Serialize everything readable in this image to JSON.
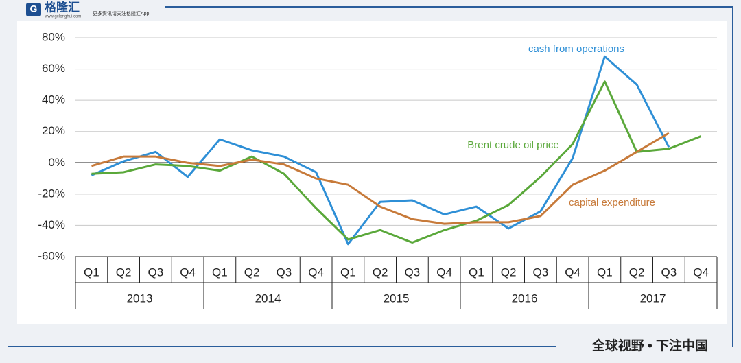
{
  "brand": {
    "name": "格隆汇",
    "url": "www.gelonghui.com",
    "tagline": "更多资讯请关注格隆汇App",
    "footer": "全球视野 • 下注中国"
  },
  "chart_data": {
    "type": "line",
    "categories": [
      "Q1",
      "Q2",
      "Q3",
      "Q4",
      "Q1",
      "Q2",
      "Q3",
      "Q4",
      "Q1",
      "Q2",
      "Q3",
      "Q4",
      "Q1",
      "Q2",
      "Q3",
      "Q4",
      "Q1",
      "Q2",
      "Q3",
      "Q4"
    ],
    "groups": [
      "2013",
      "2014",
      "2015",
      "2016",
      "2017"
    ],
    "series": [
      {
        "name": "cash from operations",
        "color": "#2e8fd6",
        "values": [
          -8,
          1,
          7,
          -9,
          15,
          8,
          4,
          -6,
          -52,
          -25,
          -24,
          -33,
          -28,
          -42,
          -31,
          3,
          68,
          50,
          10,
          null
        ]
      },
      {
        "name": "Brent crude oil price",
        "color": "#5aa83a",
        "values": [
          -7,
          -6,
          -1,
          -2,
          -5,
          4,
          -7,
          -29,
          -49,
          -43,
          -51,
          -43,
          -37,
          -27,
          -9,
          12,
          52,
          7,
          9,
          17
        ]
      },
      {
        "name": "capital expenditure",
        "color": "#c77a3a",
        "values": [
          -2,
          4,
          4,
          0,
          -2,
          2,
          -1,
          -10,
          -14,
          -28,
          -36,
          -39,
          -38,
          -38,
          -34,
          -14,
          -5,
          7,
          19,
          null
        ]
      }
    ],
    "ylim": [
      -60,
      80
    ],
    "yticks": [
      {
        "value": -60,
        "label": "-60%"
      },
      {
        "value": -40,
        "label": "-40%"
      },
      {
        "value": -20,
        "label": "-20%"
      },
      {
        "value": 0,
        "label": "0%"
      },
      {
        "value": 20,
        "label": "20%"
      },
      {
        "value": 40,
        "label": "40%"
      },
      {
        "value": 60,
        "label": "60%"
      },
      {
        "value": 80,
        "label": "80%"
      }
    ],
    "grid": true
  }
}
